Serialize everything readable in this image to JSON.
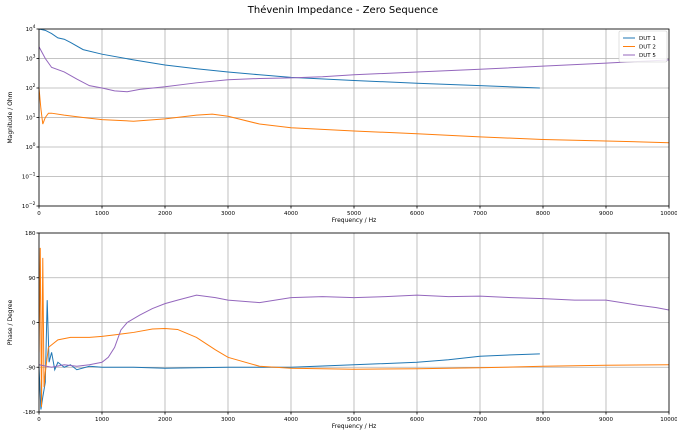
{
  "chart_data": {
    "title": "Thévenin Impedance - Zero Sequence",
    "colors": {
      "DUT 1": "#1f77b4",
      "DUT 2": "#ff7f0e",
      "DUT 5": "#9467bd"
    },
    "legend_position": "top-right",
    "charts": [
      {
        "type": "line",
        "xlabel": "Frequency / Hz",
        "ylabel": "Magnitude / Ohm",
        "xlim": [
          0,
          10000
        ],
        "ylim": [
          0.01,
          10000
        ],
        "yscale": "log",
        "grid": true,
        "xticks": [
          0,
          1000,
          2000,
          3000,
          4000,
          5000,
          6000,
          7000,
          8000,
          9000,
          10000
        ],
        "yticks": [
          {
            "value": 0.01,
            "base": "10",
            "exp": "−2"
          },
          {
            "value": 0.1,
            "base": "10",
            "exp": "−1"
          },
          {
            "value": 1,
            "base": "10",
            "exp": "0"
          },
          {
            "value": 10,
            "base": "10",
            "exp": "1"
          },
          {
            "value": 100,
            "base": "10",
            "exp": "2"
          },
          {
            "value": 1000,
            "base": "10",
            "exp": "3"
          },
          {
            "value": 10000,
            "base": "10",
            "exp": "4"
          }
        ],
        "series": [
          {
            "name": "DUT 1",
            "x": [
              0,
              100,
              200,
              300,
              400,
              500,
              700,
              1000,
              1500,
              2000,
              2500,
              3000,
              3500,
              4000,
              5000,
              6000,
              7000,
              7950
            ],
            "y": [
              10000,
              9000,
              7000,
              5000,
              4500,
              3500,
              2000,
              1400,
              900,
              600,
              450,
              350,
              280,
              230,
              180,
              145,
              120,
              100
            ]
          },
          {
            "name": "DUT 2",
            "x": [
              0,
              30,
              60,
              100,
              150,
              200,
              400,
              700,
              1000,
              1500,
              2000,
              2500,
              2750,
              3000,
              3500,
              4000,
              5000,
              6000,
              7000,
              8000,
              9000,
              10000
            ],
            "y": [
              100,
              20,
              6,
              10,
              14,
              14,
              12,
              10,
              8.5,
              7.5,
              9,
              12,
              13,
              11,
              6,
              4.5,
              3.5,
              2.8,
              2.2,
              1.8,
              1.6,
              1.4
            ]
          },
          {
            "name": "DUT 5",
            "x": [
              0,
              100,
              200,
              400,
              600,
              800,
              1000,
              1200,
              1400,
              1600,
              2000,
              2500,
              3000,
              3500,
              4000,
              4500,
              5000,
              6000,
              7000,
              8000,
              9000,
              10000
            ],
            "y": [
              2500,
              1000,
              500,
              350,
              200,
              120,
              100,
              80,
              75,
              90,
              110,
              150,
              190,
              210,
              220,
              240,
              280,
              350,
              430,
              550,
              700,
              900
            ]
          }
        ]
      },
      {
        "type": "line",
        "xlabel": "Frequency / Hz",
        "ylabel": "Phase / Degree",
        "xlim": [
          0,
          10000
        ],
        "ylim": [
          -180,
          180
        ],
        "yscale": "linear",
        "grid": true,
        "xticks": [
          0,
          1000,
          2000,
          3000,
          4000,
          5000,
          6000,
          7000,
          8000,
          9000,
          10000
        ],
        "yticks": [
          -180,
          -90,
          0,
          90,
          180
        ],
        "series": [
          {
            "name": "DUT 1",
            "x": [
              0,
              30,
              60,
              100,
              130,
              160,
              200,
              250,
              300,
              400,
              500,
              600,
              800,
              1000,
              1500,
              2000,
              3000,
              4000,
              5000,
              6000,
              6500,
              7000,
              7500,
              7950
            ],
            "y": [
              -90,
              -175,
              -150,
              -120,
              45,
              -80,
              -60,
              -95,
              -80,
              -90,
              -85,
              -95,
              -88,
              -90,
              -90,
              -92,
              -90,
              -90,
              -85,
              -80,
              -75,
              -68,
              -65,
              -63
            ]
          },
          {
            "name": "DUT 2",
            "x": [
              0,
              20,
              40,
              60,
              80,
              100,
              150,
              200,
              300,
              500,
              800,
              1000,
              1200,
              1500,
              1800,
              2000,
              2200,
              2500,
              2800,
              3000,
              3500,
              4000,
              5000,
              6000,
              7000,
              8000,
              9000,
              10000
            ],
            "y": [
              -60,
              150,
              -170,
              130,
              -130,
              -100,
              -50,
              -45,
              -35,
              -30,
              -30,
              -28,
              -25,
              -20,
              -13,
              -12,
              -14,
              -30,
              -55,
              -70,
              -88,
              -92,
              -94,
              -93,
              -91,
              -88,
              -86,
              -85
            ]
          },
          {
            "name": "DUT 5",
            "x": [
              0,
              200,
              400,
              600,
              800,
              1000,
              1100,
              1200,
              1300,
              1400,
              1600,
              1800,
              2000,
              2200,
              2500,
              2800,
              3000,
              3500,
              4000,
              4500,
              5000,
              5500,
              6000,
              6500,
              7000,
              7500,
              8000,
              8500,
              9000,
              9500,
              9800,
              10000
            ],
            "y": [
              -85,
              -90,
              -85,
              -88,
              -85,
              -80,
              -70,
              -50,
              -15,
              0,
              15,
              28,
              38,
              45,
              55,
              50,
              45,
              40,
              50,
              52,
              50,
              52,
              55,
              52,
              53,
              50,
              48,
              45,
              45,
              35,
              30,
              25
            ]
          }
        ]
      }
    ]
  }
}
